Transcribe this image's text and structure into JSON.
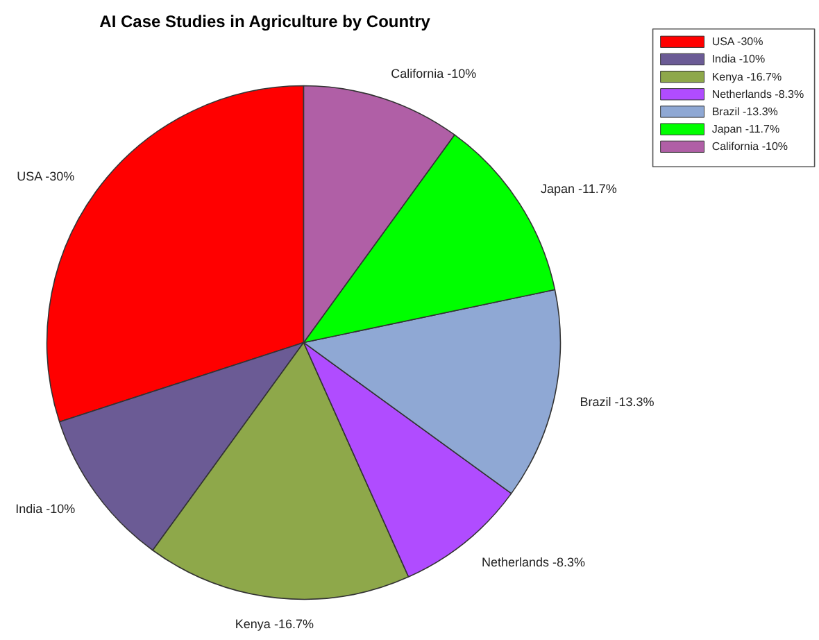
{
  "chart_data": {
    "type": "pie",
    "title": "AI Case Studies in Agriculture by Country",
    "categories": [
      "USA -30%",
      "India -10%",
      "Kenya -16.7%",
      "Netherlands -8.3%",
      "Brazil -13.3%",
      "Japan -11.7%",
      "California -10%"
    ],
    "values": [
      30,
      10,
      16.7,
      8.3,
      13.3,
      11.7,
      10
    ],
    "colors": [
      "#ff0000",
      "#6b5b95",
      "#8ea84a",
      "#b04cff",
      "#8fa8d4",
      "#00ff00",
      "#b05fa6"
    ],
    "legend": "top right"
  }
}
